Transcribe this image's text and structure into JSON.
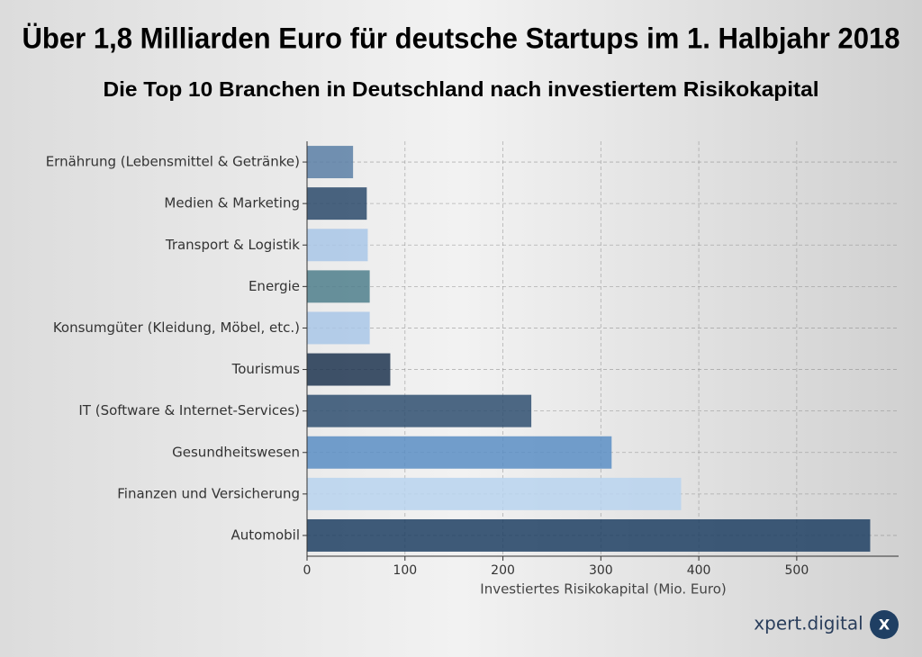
{
  "chart_data": {
    "type": "barh",
    "title": "Über 1,8 Milliarden Euro für deutsche Startups im 1. Halbjahr 2018",
    "subtitle": "Die Top 10 Branchen in Deutschland nach investiertem Risikokapital",
    "categories": [
      "Ernährung (Lebensmittel & Getränke)",
      "Medien & Marketing",
      "Transport & Logistik",
      "Energie",
      "Konsumgüter (Kleidung, Möbel, etc.)",
      "Tourismus",
      "IT (Software & Internet-Services)",
      "Gesundheitswesen",
      "Finanzen und Versicherung",
      "Automobil"
    ],
    "values": [
      47,
      61,
      62,
      64,
      64,
      85,
      229,
      311,
      382,
      575
    ],
    "colors": [
      "#5b7fa6",
      "#2c4a6b",
      "#a9c7e8",
      "#4f7f8c",
      "#a9c7e8",
      "#1e3550",
      "#2f4f70",
      "#5b8ec4",
      "#b8d4ee",
      "#1f3f63"
    ],
    "xlabel": "Investiertes Risikokapital (Mio. Euro)",
    "xlim": [
      0,
      604
    ],
    "xticks": [
      0,
      100,
      200,
      300,
      400,
      500
    ],
    "grid": true,
    "brand": "xpert.digital",
    "brand_logo": "X"
  }
}
